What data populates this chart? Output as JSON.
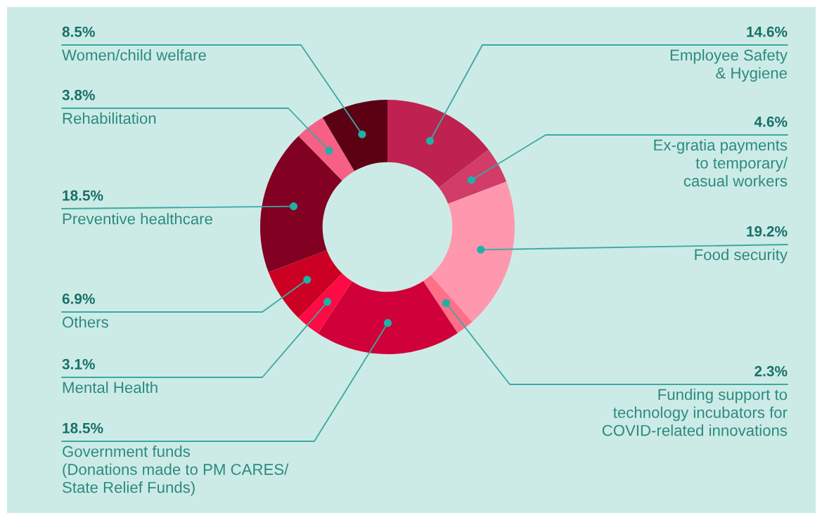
{
  "chart_data": {
    "type": "donut",
    "categories": [
      "Employee Safety\n& Hygiene",
      "Ex-gratia payments\nto temporary/\ncasual workers",
      "Food security",
      "Funding support to\ntechnology incubators for\nCOVID-related innovations",
      "Government funds\n(Donations made to PM CARES/\nState Relief Funds)",
      "Mental Health",
      "Others",
      "Preventive healthcare",
      "Rehabilitation",
      "Women/child welfare"
    ],
    "values": [
      14.6,
      4.6,
      19.2,
      2.3,
      18.5,
      3.1,
      6.9,
      18.5,
      3.8,
      8.5
    ],
    "value_labels": [
      "14.6%",
      "4.6%",
      "19.2%",
      "2.3%",
      "18.5%",
      "3.1%",
      "6.9%",
      "18.5%",
      "3.8%",
      "8.5%"
    ],
    "colors": [
      "#bf2150",
      "#d13c68",
      "#ff97ae",
      "#ff7088",
      "#d0003a",
      "#ff0a45",
      "#cc0022",
      "#820022",
      "#f76085",
      "#5c0014"
    ]
  }
}
